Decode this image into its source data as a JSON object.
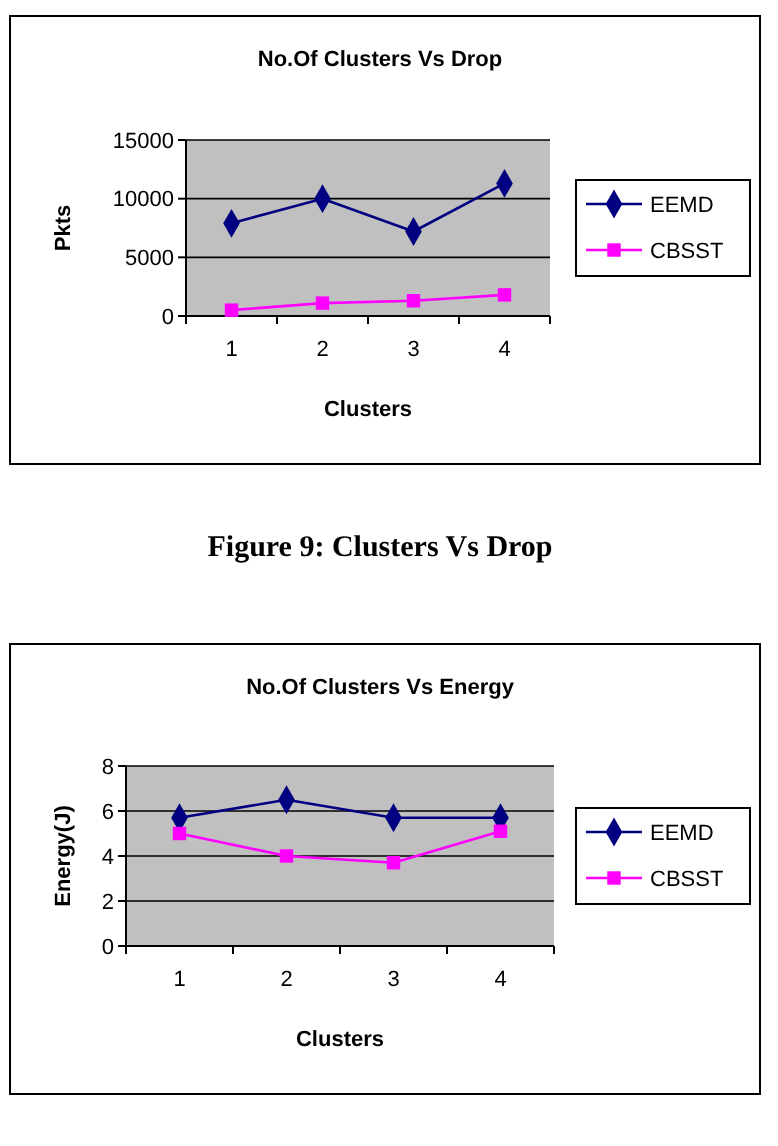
{
  "chart_data": [
    {
      "type": "line",
      "title": "No.Of Clusters Vs Drop",
      "xlabel": "Clusters",
      "ylabel": "Pkts",
      "categories": [
        "1",
        "2",
        "3",
        "4"
      ],
      "ylim": [
        0,
        15000
      ],
      "yticks": [
        0,
        5000,
        10000,
        15000
      ],
      "grid": "y",
      "legend": "right",
      "annotations": [
        "Figure 9: Clusters Vs Drop"
      ],
      "series": [
        {
          "name": "EEMD",
          "color": "#000080",
          "marker": "diamond",
          "values": [
            7900,
            10000,
            7200,
            11300
          ]
        },
        {
          "name": "CBSST",
          "color": "#ff00ff",
          "marker": "square",
          "values": [
            500,
            1100,
            1300,
            1800
          ]
        }
      ]
    },
    {
      "type": "line",
      "title": "No.Of Clusters Vs Energy",
      "xlabel": "Clusters",
      "ylabel": "Energy(J)",
      "categories": [
        "1",
        "2",
        "3",
        "4"
      ],
      "ylim": [
        0,
        8
      ],
      "yticks": [
        0,
        2,
        4,
        6,
        8
      ],
      "grid": "y",
      "legend": "right",
      "series": [
        {
          "name": "EEMD",
          "color": "#000080",
          "marker": "diamond",
          "values": [
            5.7,
            6.5,
            5.7,
            5.7
          ]
        },
        {
          "name": "CBSST",
          "color": "#ff00ff",
          "marker": "square",
          "values": [
            5.0,
            4.0,
            3.7,
            5.1
          ]
        }
      ]
    }
  ]
}
